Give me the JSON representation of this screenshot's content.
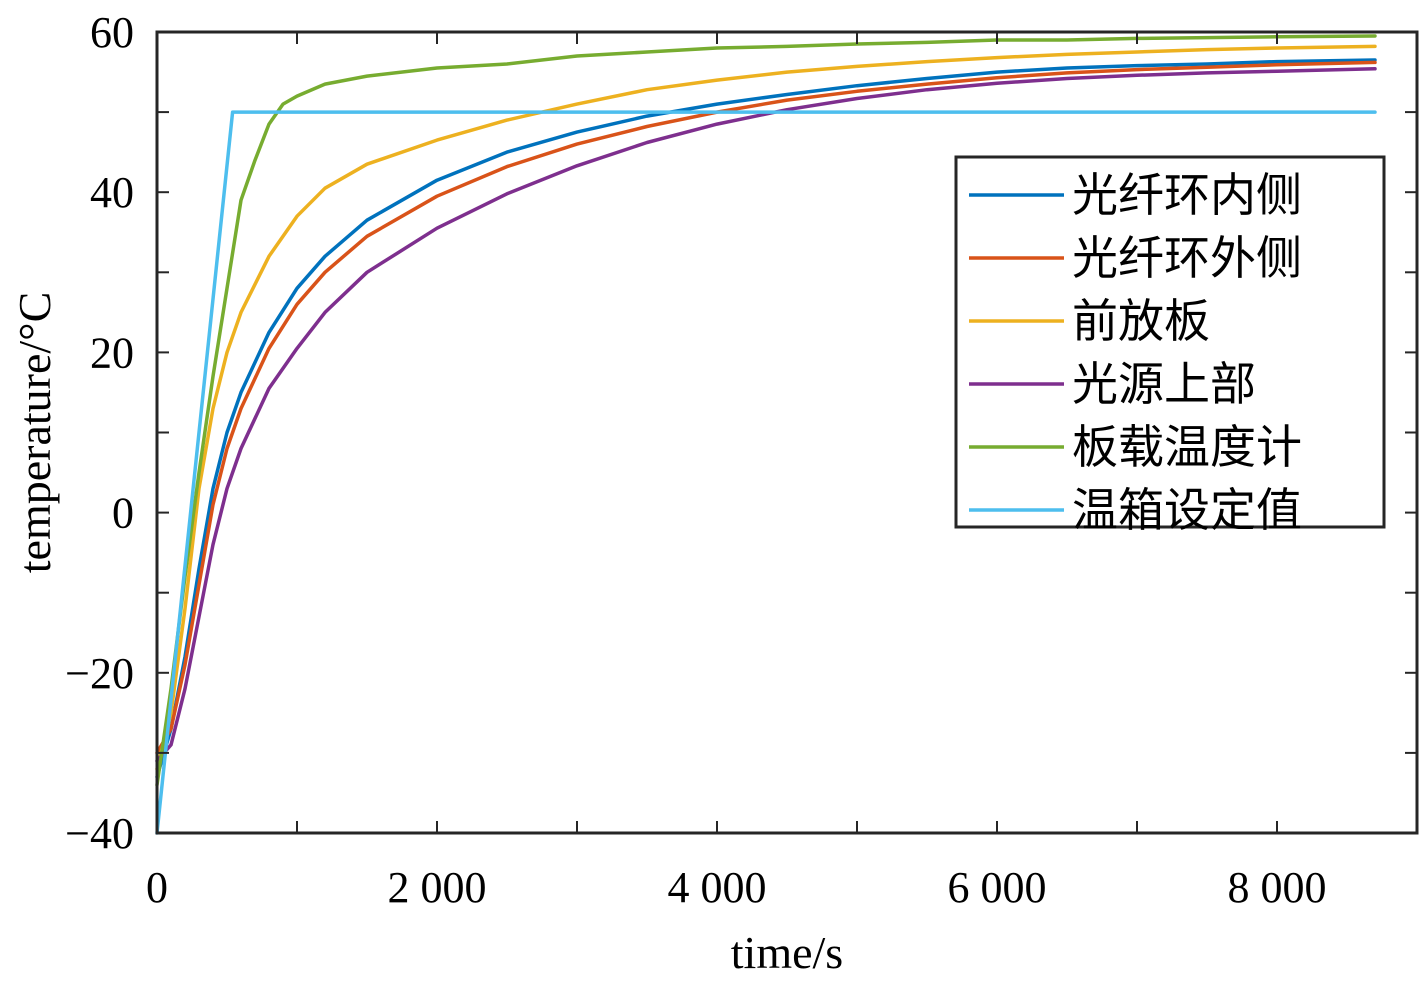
{
  "chart_data": {
    "type": "line",
    "title": "",
    "xlabel": "time/s",
    "ylabel": "temperature/°C",
    "xlim": [
      0,
      9000
    ],
    "ylim": [
      -40,
      60
    ],
    "x_ticks": [
      0,
      2000,
      4000,
      6000,
      8000
    ],
    "x_tick_labels": [
      "0",
      "2 000",
      "4 000",
      "6 000",
      "8 000"
    ],
    "y_ticks": [
      -40,
      -20,
      0,
      20,
      40,
      60
    ],
    "y_tick_labels": [
      "−40",
      "−20",
      "0",
      "20",
      "40",
      "60"
    ],
    "grid": false,
    "legend_position": "upper-right",
    "series": [
      {
        "name": "光纤环内侧",
        "color": "#0072bd",
        "x": [
          0,
          100,
          200,
          300,
          400,
          500,
          600,
          800,
          1000,
          1200,
          1500,
          2000,
          2500,
          3000,
          3500,
          4000,
          4500,
          5000,
          5500,
          6000,
          6500,
          7000,
          7500,
          8000,
          8700
        ],
        "y": [
          -33,
          -27,
          -18,
          -7,
          3,
          10,
          15,
          22.5,
          28,
          32,
          36.5,
          41.5,
          45,
          47.5,
          49.5,
          51,
          52.2,
          53.3,
          54.2,
          55,
          55.5,
          55.8,
          56,
          56.3,
          56.5
        ]
      },
      {
        "name": "光纤环外侧",
        "color": "#d95319",
        "x": [
          0,
          100,
          200,
          300,
          400,
          500,
          600,
          800,
          1000,
          1200,
          1500,
          2000,
          2500,
          3000,
          3500,
          4000,
          4500,
          5000,
          5500,
          6000,
          6500,
          7000,
          7500,
          8000,
          8700
        ],
        "y": [
          -30,
          -27,
          -19,
          -9,
          1,
          8,
          13,
          20.5,
          26,
          30,
          34.5,
          39.5,
          43.2,
          46,
          48.2,
          50,
          51.5,
          52.6,
          53.5,
          54.3,
          54.9,
          55.3,
          55.6,
          55.9,
          56.2
        ]
      },
      {
        "name": "前放板",
        "color": "#edb120",
        "x": [
          0,
          100,
          200,
          300,
          400,
          500,
          600,
          800,
          1000,
          1200,
          1500,
          2000,
          2500,
          3000,
          3500,
          4000,
          4500,
          5000,
          5500,
          6000,
          6500,
          7000,
          7500,
          8000,
          8700
        ],
        "y": [
          -32,
          -25,
          -12,
          3,
          13,
          20,
          25,
          32,
          37,
          40.5,
          43.5,
          46.5,
          49,
          51,
          52.8,
          54,
          55,
          55.7,
          56.3,
          56.8,
          57.2,
          57.5,
          57.8,
          58,
          58.2
        ]
      },
      {
        "name": "光源上部",
        "color": "#7e2f8e",
        "x": [
          0,
          100,
          200,
          300,
          400,
          500,
          600,
          800,
          1000,
          1200,
          1500,
          2000,
          2500,
          3000,
          3500,
          4000,
          4500,
          5000,
          5500,
          6000,
          6500,
          7000,
          7500,
          8000,
          8700
        ],
        "y": [
          -31,
          -29,
          -22,
          -13,
          -4,
          3,
          8,
          15.5,
          20.5,
          25,
          30,
          35.5,
          39.8,
          43.3,
          46.2,
          48.5,
          50.3,
          51.7,
          52.8,
          53.6,
          54.2,
          54.6,
          54.9,
          55.1,
          55.4
        ]
      },
      {
        "name": "板载温度计",
        "color": "#77ac30",
        "x": [
          0,
          100,
          200,
          300,
          400,
          500,
          600,
          700,
          800,
          900,
          1000,
          1200,
          1500,
          2000,
          2500,
          3000,
          3500,
          4000,
          4500,
          5000,
          5500,
          6000,
          6500,
          7000,
          7500,
          8000,
          8700
        ],
        "y": [
          -34,
          -22,
          -8,
          5,
          17,
          28,
          39,
          44,
          48.5,
          51,
          52,
          53.5,
          54.5,
          55.5,
          56,
          57,
          57.5,
          58,
          58.2,
          58.5,
          58.7,
          59,
          59,
          59.2,
          59.3,
          59.4,
          59.5
        ]
      },
      {
        "name": "温箱设定值",
        "color": "#4dbeee",
        "x": [
          0,
          540,
          8700
        ],
        "y": [
          -40,
          50,
          50
        ]
      }
    ]
  }
}
